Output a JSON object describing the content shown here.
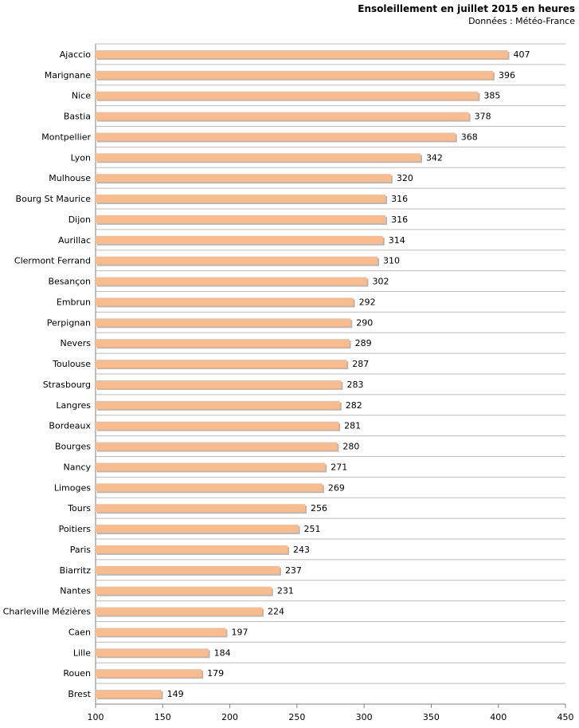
{
  "chart_data": {
    "type": "bar",
    "orientation": "horizontal",
    "title": "Ensoleillement en juillet 2015 en heures",
    "subtitle": "Données : Météo-France",
    "categories": [
      "Ajaccio",
      "Marignane",
      "Nice",
      "Bastia",
      "Montpellier",
      "Lyon",
      "Mulhouse",
      "Bourg St Maurice",
      "Dijon",
      "Aurillac",
      "Clermont Ferrand",
      "Besançon",
      "Embrun",
      "Perpignan",
      "Nevers",
      "Toulouse",
      "Strasbourg",
      "Langres",
      "Bordeaux",
      "Bourges",
      "Nancy",
      "Limoges",
      "Tours",
      "Poitiers",
      "Paris",
      "Biarritz",
      "Nantes",
      "Charleville Mézières",
      "Caen",
      "Lille",
      "Rouen",
      "Brest"
    ],
    "values": [
      407,
      396,
      385,
      378,
      368,
      342,
      320,
      316,
      316,
      314,
      310,
      302,
      292,
      290,
      289,
      287,
      283,
      282,
      281,
      280,
      271,
      269,
      256,
      251,
      243,
      237,
      231,
      224,
      197,
      184,
      179,
      149
    ],
    "xlim": [
      100,
      450
    ],
    "xticks": [
      100,
      150,
      200,
      250,
      300,
      350,
      400,
      450
    ],
    "grid": true,
    "colors": {
      "bar": "#f9bc8f",
      "shadow": "#b8b8b8",
      "grid": "#bdbdbd"
    }
  }
}
